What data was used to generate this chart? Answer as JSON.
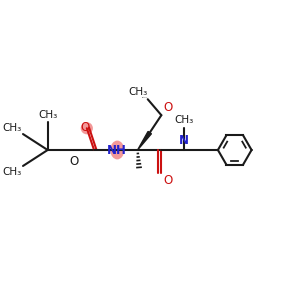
{
  "bg_color": "#ffffff",
  "line_color": "#1a1a1a",
  "N_color": "#2222cc",
  "O_color": "#cc1111",
  "NH_highlight": "#f08080",
  "O_highlight": "#f08080",
  "bond_lw": 1.5,
  "font_size": 7.5,
  "figsize": [
    3.0,
    3.0
  ],
  "dpi": 100,
  "xlim": [
    0,
    10
  ],
  "ylim": [
    2,
    8
  ]
}
